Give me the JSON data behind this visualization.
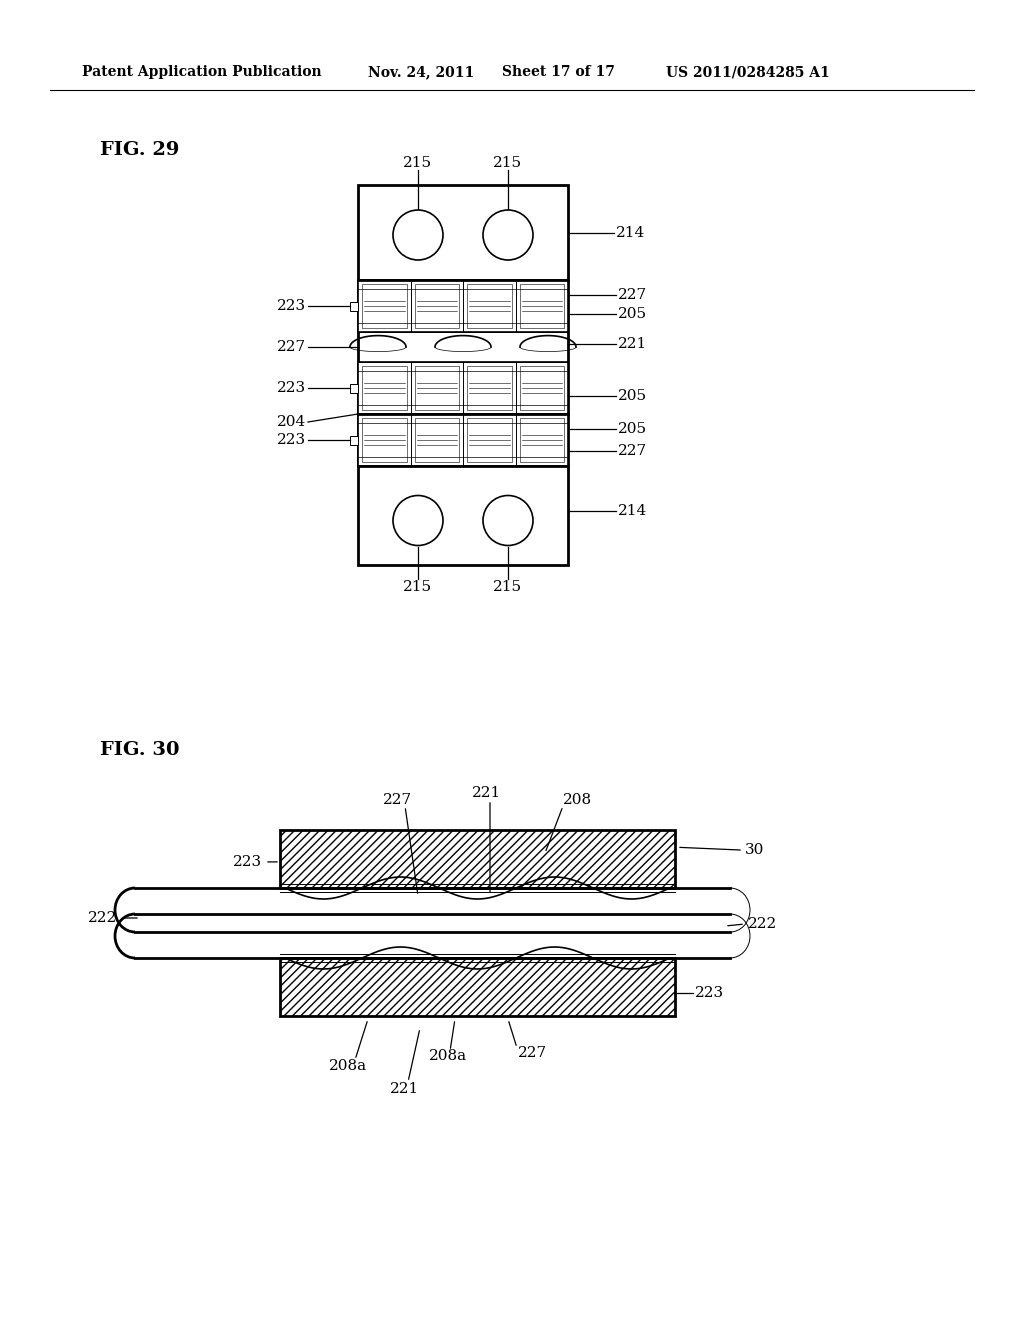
{
  "bg_color": "#ffffff",
  "header_text": "Patent Application Publication",
  "header_date": "Nov. 24, 2011",
  "header_sheet": "Sheet 17 of 17",
  "header_patent": "US 2011/0284285 A1",
  "fig29_label": "FIG. 29",
  "fig30_label": "FIG. 30",
  "label_fontsize": 11,
  "header_fontsize": 10,
  "fig_label_fontsize": 14
}
